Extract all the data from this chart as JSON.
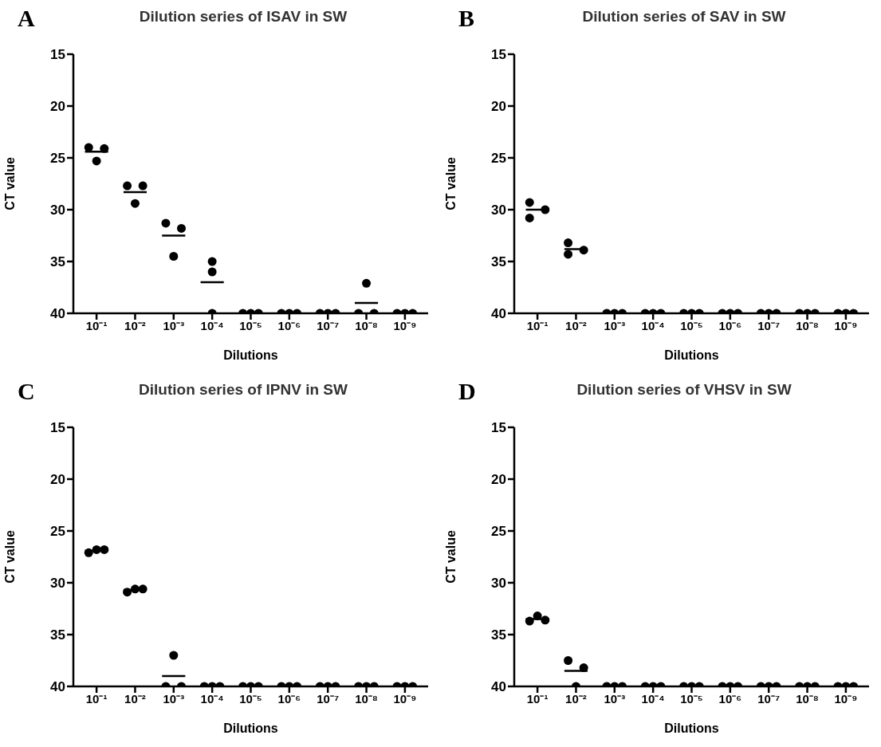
{
  "chart_data": [
    {
      "type": "scatter",
      "title": "Dilution series of ISAV in SW",
      "annotations": [
        "A"
      ],
      "xlabel": "Dilutions",
      "ylabel": "CT value",
      "log": "x",
      "xlim": [
        0.4,
        2.5e-10
      ],
      "xticks": [
        {
          "value": 0.1,
          "label": "10⁻¹"
        },
        {
          "value": 0.01,
          "label": "10⁻²"
        },
        {
          "value": 0.001,
          "label": "10⁻³"
        },
        {
          "value": 0.0001,
          "label": "10⁻⁴"
        },
        {
          "value": 1e-05,
          "label": "10⁻⁵"
        },
        {
          "value": 1e-06,
          "label": "10⁻⁶"
        },
        {
          "value": 1e-07,
          "label": "10⁻⁷"
        },
        {
          "value": 1e-08,
          "label": "10⁻⁸"
        },
        {
          "value": 1e-09,
          "label": "10⁻⁹"
        }
      ],
      "ylim": [
        40,
        15
      ],
      "yticks": [
        15,
        20,
        25,
        30,
        35,
        40
      ],
      "series": [
        {
          "marker": "circle",
          "color": "#000000",
          "x": [
            0.16,
            0.1,
            0.063,
            0.016,
            0.01,
            0.0063,
            0.0016,
            0.001,
            0.00063,
            0.0001,
            0.0001,
            0.0001,
            1.6e-05,
            1e-05,
            6.3e-06,
            1.6e-06,
            1e-06,
            6.3e-07,
            1.6e-07,
            1e-07,
            6.3e-08,
            1.6e-08,
            1e-08,
            6.3e-09,
            1.6e-09,
            1e-09,
            6.3e-10
          ],
          "values": [
            24.0,
            25.3,
            24.1,
            27.7,
            29.4,
            27.7,
            31.3,
            34.5,
            31.8,
            35.0,
            36.0,
            40,
            40,
            40,
            40,
            40,
            40,
            40,
            40,
            40,
            40,
            40,
            37.1,
            40,
            40,
            40,
            40
          ]
        },
        {
          "type": "line",
          "marker": "none",
          "color": "#000000",
          "x": [
            0.2,
            0.05,
            0.03,
            0.02,
            0.005,
            0.003,
            0.002,
            0.0005,
            0.0003,
            0.0002,
            5e-05,
            3e-05,
            2e-05,
            5e-06,
            3e-06,
            2e-06,
            5e-07,
            3e-07,
            2e-07,
            5e-08,
            3e-08,
            2e-08,
            5e-09
          ],
          "values": [
            24.4,
            24.4,
            null,
            28.3,
            28.3,
            null,
            32.5,
            32.5,
            null,
            37.0,
            37.0,
            null,
            null,
            null,
            null,
            null,
            null,
            null,
            null,
            null,
            null,
            39.0,
            39.0
          ]
        }
      ]
    },
    {
      "type": "scatter",
      "title": "Dilution series of SAV in SW",
      "annotations": [
        "B"
      ],
      "xlabel": "Dilutions",
      "ylabel": "CT value",
      "log": "x",
      "xlim": [
        0.4,
        2.5e-10
      ],
      "xticks": [
        {
          "value": 0.1,
          "label": "10⁻¹"
        },
        {
          "value": 0.01,
          "label": "10⁻²"
        },
        {
          "value": 0.001,
          "label": "10⁻³"
        },
        {
          "value": 0.0001,
          "label": "10⁻⁴"
        },
        {
          "value": 1e-05,
          "label": "10⁻⁵"
        },
        {
          "value": 1e-06,
          "label": "10⁻⁶"
        },
        {
          "value": 1e-07,
          "label": "10⁻⁷"
        },
        {
          "value": 1e-08,
          "label": "10⁻⁸"
        },
        {
          "value": 1e-09,
          "label": "10⁻⁹"
        }
      ],
      "ylim": [
        40,
        15
      ],
      "yticks": [
        15,
        20,
        25,
        30,
        35,
        40
      ],
      "series": [
        {
          "marker": "circle",
          "color": "#000000",
          "x": [
            0.16,
            0.16,
            0.063,
            0.016,
            0.016,
            0.0063,
            0.0016,
            0.001,
            0.00063,
            0.00016,
            0.0001,
            6.3e-05,
            1.6e-05,
            1e-05,
            6.3e-06,
            1.6e-06,
            1e-06,
            6.3e-07,
            1.6e-07,
            1e-07,
            6.3e-08,
            1.6e-08,
            1e-08,
            6.3e-09,
            1.6e-09,
            1e-09,
            6.3e-10
          ],
          "values": [
            29.3,
            30.8,
            30.0,
            33.2,
            34.3,
            33.9,
            40,
            40,
            40,
            40,
            40,
            40,
            40,
            40,
            40,
            40,
            40,
            40,
            40,
            40,
            40,
            40,
            40,
            40,
            40,
            40,
            40
          ]
        },
        {
          "type": "line",
          "marker": "none",
          "color": "#000000",
          "x": [
            0.2,
            0.05,
            0.03,
            0.02,
            0.005
          ],
          "values": [
            30.0,
            30.0,
            null,
            33.8,
            33.8
          ]
        }
      ]
    },
    {
      "type": "scatter",
      "title": "Dilution series of IPNV in SW",
      "annotations": [
        "C"
      ],
      "xlabel": "Dilutions",
      "ylabel": "CT value",
      "log": "x",
      "xlim": [
        0.4,
        2.5e-10
      ],
      "xticks": [
        {
          "value": 0.1,
          "label": "10⁻¹"
        },
        {
          "value": 0.01,
          "label": "10⁻²"
        },
        {
          "value": 0.001,
          "label": "10⁻³"
        },
        {
          "value": 0.0001,
          "label": "10⁻⁴"
        },
        {
          "value": 1e-05,
          "label": "10⁻⁵"
        },
        {
          "value": 1e-06,
          "label": "10⁻⁶"
        },
        {
          "value": 1e-07,
          "label": "10⁻⁷"
        },
        {
          "value": 1e-08,
          "label": "10⁻⁸"
        },
        {
          "value": 1e-09,
          "label": "10⁻⁹"
        }
      ],
      "ylim": [
        40,
        15
      ],
      "yticks": [
        15,
        20,
        25,
        30,
        35,
        40
      ],
      "series": [
        {
          "marker": "circle",
          "color": "#000000",
          "x": [
            0.16,
            0.1,
            0.063,
            0.016,
            0.01,
            0.0063,
            0.0016,
            0.001,
            0.00063,
            0.00016,
            0.0001,
            6.3e-05,
            1.6e-05,
            1e-05,
            6.3e-06,
            1.6e-06,
            1e-06,
            6.3e-07,
            1.6e-07,
            1e-07,
            6.3e-08,
            1.6e-08,
            1e-08,
            6.3e-09,
            1.6e-09,
            1e-09,
            6.3e-10
          ],
          "values": [
            27.1,
            26.8,
            26.8,
            30.9,
            30.6,
            30.6,
            40,
            37.0,
            40,
            40,
            40,
            40,
            40,
            40,
            40,
            40,
            40,
            40,
            40,
            40,
            40,
            40,
            40,
            40,
            40,
            40,
            40
          ]
        },
        {
          "type": "line",
          "marker": "none",
          "color": "#000000",
          "x": [
            0.2,
            0.05,
            0.03,
            0.02,
            0.005,
            0.003,
            0.002,
            0.0005
          ],
          "values": [
            26.9,
            26.9,
            null,
            30.7,
            30.7,
            null,
            39.0,
            39.0
          ]
        }
      ]
    },
    {
      "type": "scatter",
      "title": "Dilution series of VHSV in SW",
      "annotations": [
        "D"
      ],
      "xlabel": "Dilutions",
      "ylabel": "CT value",
      "log": "x",
      "xlim": [
        0.4,
        2.5e-10
      ],
      "xticks": [
        {
          "value": 0.1,
          "label": "10⁻¹"
        },
        {
          "value": 0.01,
          "label": "10⁻²"
        },
        {
          "value": 0.001,
          "label": "10⁻³"
        },
        {
          "value": 0.0001,
          "label": "10⁻⁴"
        },
        {
          "value": 1e-05,
          "label": "10⁻⁵"
        },
        {
          "value": 1e-06,
          "label": "10⁻⁶"
        },
        {
          "value": 1e-07,
          "label": "10⁻⁷"
        },
        {
          "value": 1e-08,
          "label": "10⁻⁸"
        },
        {
          "value": 1e-09,
          "label": "10⁻⁹"
        }
      ],
      "ylim": [
        40,
        15
      ],
      "yticks": [
        15,
        20,
        25,
        30,
        35,
        40
      ],
      "series": [
        {
          "marker": "circle",
          "color": "#000000",
          "x": [
            0.16,
            0.1,
            0.063,
            0.016,
            0.01,
            0.0063,
            0.0016,
            0.001,
            0.00063,
            0.00016,
            0.0001,
            6.3e-05,
            1.6e-05,
            1e-05,
            6.3e-06,
            1.6e-06,
            1e-06,
            6.3e-07,
            1.6e-07,
            1e-07,
            6.3e-08,
            1.6e-08,
            1e-08,
            6.3e-09,
            1.6e-09,
            1e-09,
            6.3e-10
          ],
          "values": [
            33.7,
            33.2,
            33.6,
            37.5,
            40,
            38.2,
            40,
            40,
            40,
            40,
            40,
            40,
            40,
            40,
            40,
            40,
            40,
            40,
            40,
            40,
            40,
            40,
            40,
            40,
            40,
            40,
            40
          ]
        },
        {
          "type": "line",
          "marker": "none",
          "color": "#000000",
          "x": [
            0.2,
            0.05,
            0.03,
            0.02,
            0.005
          ],
          "values": [
            33.5,
            33.5,
            null,
            38.5,
            38.5
          ]
        }
      ]
    }
  ]
}
